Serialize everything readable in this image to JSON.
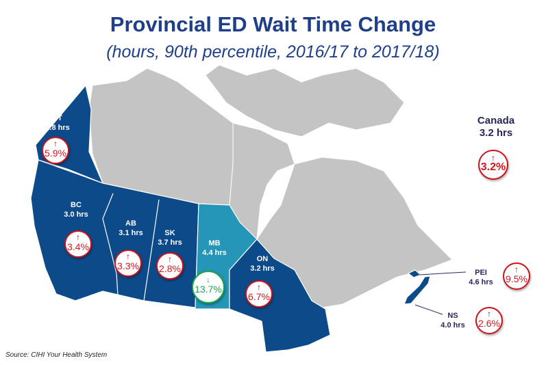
{
  "title": "Provincial ED Wait Time Change",
  "subtitle": "(hours, 90th percentile, 2016/17 to 2017/18)",
  "colors": {
    "province": "#0d4a8a",
    "manitoba": "#2595b8",
    "other": "#c4c4c4",
    "up": "#d9141c",
    "down": "#1aa54a",
    "title": "#1f3f8a"
  },
  "regions": {
    "yt": {
      "name": "YT",
      "hours": "1.8 hrs",
      "arrow": "↑",
      "change": "5.9%"
    },
    "bc": {
      "name": "BC",
      "hours": "3.0 hrs",
      "arrow": "↑",
      "change": "3.4%"
    },
    "ab": {
      "name": "AB",
      "hours": "3.1 hrs",
      "arrow": "↑",
      "change": "3.3%"
    },
    "sk": {
      "name": "SK",
      "hours": "3.7 hrs",
      "arrow": "↑",
      "change": "2.8%"
    },
    "mb": {
      "name": "MB",
      "hours": "4.4 hrs",
      "arrow": "↓",
      "change": "13.7%"
    },
    "on": {
      "name": "ON",
      "hours": "3.2 hrs",
      "arrow": "↑",
      "change": "6.7%"
    },
    "pei": {
      "name": "PEI",
      "hours": "4.6 hrs",
      "arrow": "↑",
      "change": "9.5%"
    },
    "ns": {
      "name": "NS",
      "hours": "4.0 hrs",
      "arrow": "↑",
      "change": "2.6%"
    },
    "canada": {
      "name": "Canada",
      "hours": "3.2 hrs",
      "arrow": "↑",
      "change": "3.2%"
    }
  },
  "source": "Source: CIHI Your Health System"
}
